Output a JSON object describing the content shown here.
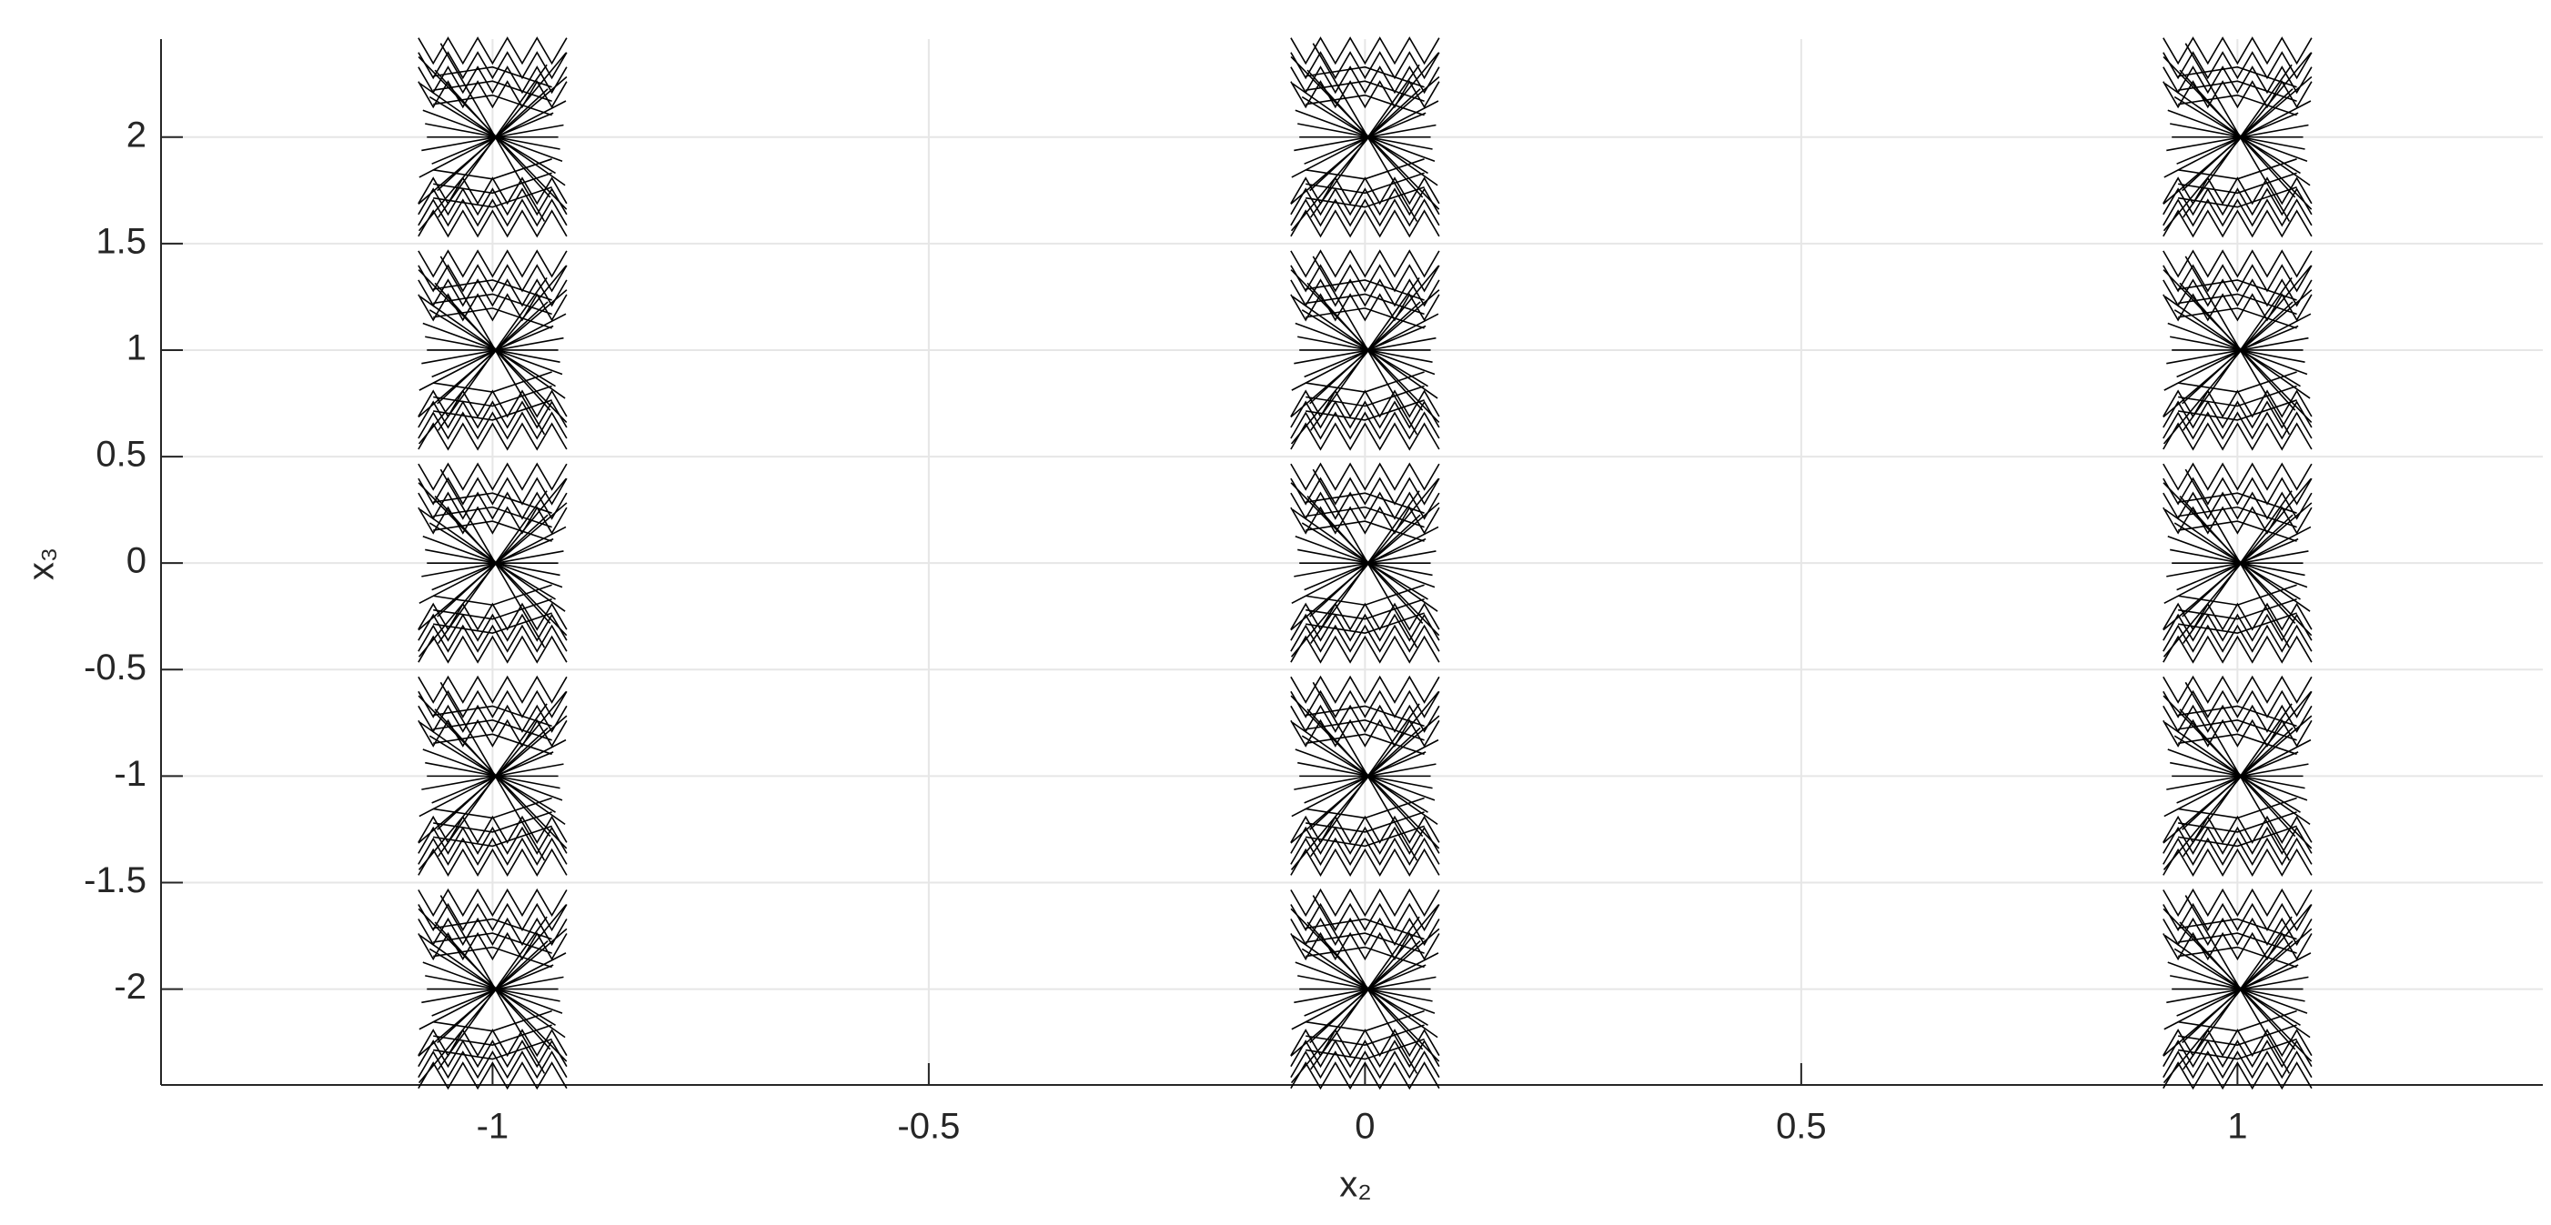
{
  "chart_data": {
    "type": "scatter",
    "xlabel": "x₂",
    "ylabel": "x₃",
    "x": [
      -1,
      -1,
      -1,
      -1,
      -1,
      0,
      0,
      0,
      0,
      0,
      1,
      1,
      1,
      1,
      1
    ],
    "values": [
      2,
      1,
      0,
      -1,
      -2,
      2,
      1,
      0,
      -1,
      -2,
      2,
      1,
      0,
      -1,
      -2
    ],
    "color": "#000000",
    "xlim": [
      -1.38,
      1.35
    ],
    "xticks": [
      -1,
      -0.5,
      0,
      0.5,
      1
    ],
    "ylim": [
      -2.45,
      2.46
    ],
    "yticks": [
      -2,
      -1.5,
      -1,
      -0.5,
      0,
      0.5,
      1,
      1.5,
      2
    ],
    "grid": true
  }
}
